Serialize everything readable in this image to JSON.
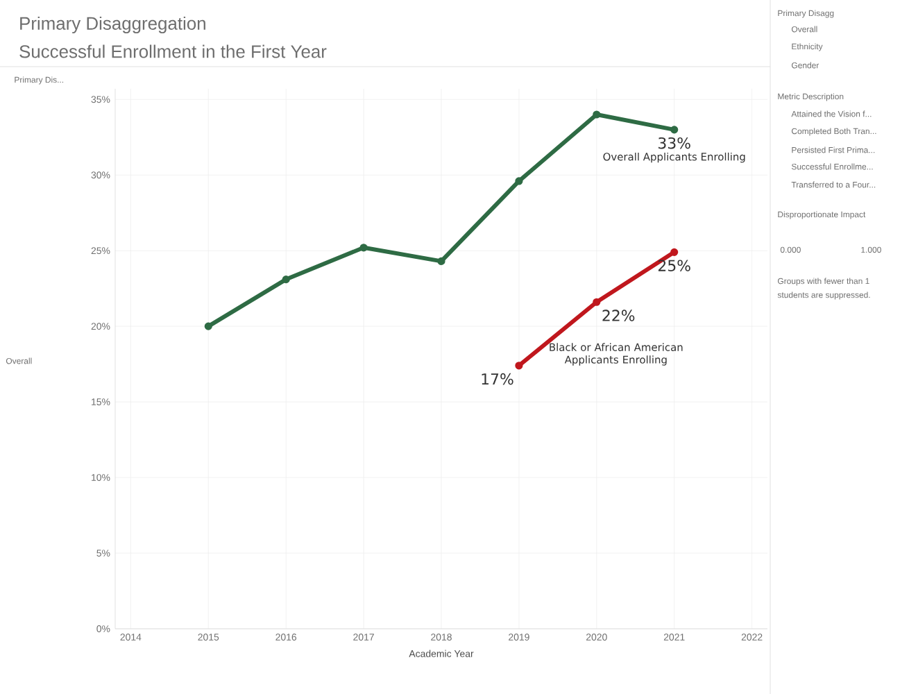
{
  "chart_data": {
    "type": "line",
    "title": "Primary Disaggregation",
    "subtitle": "Successful Enrollment in the First Year",
    "xlabel": "Academic Year",
    "xlim": [
      2013.8,
      2022.2
    ],
    "xticks": [
      2014,
      2015,
      2016,
      2017,
      2018,
      2019,
      2020,
      2021,
      2022
    ],
    "ylim": [
      0,
      35.7
    ],
    "yticks": [
      {
        "value": 0,
        "label": "0%"
      },
      {
        "value": 5,
        "label": "5%"
      },
      {
        "value": 10,
        "label": "10%"
      },
      {
        "value": 15,
        "label": "15%"
      },
      {
        "value": 20,
        "label": "20%"
      },
      {
        "value": 25,
        "label": "25%"
      },
      {
        "value": 30,
        "label": "30%"
      },
      {
        "value": 35,
        "label": "35%"
      }
    ],
    "grid": true,
    "legend": false,
    "marker": "circle",
    "line_style": "solid",
    "series": [
      {
        "name": "Overall Applicants Enrolling",
        "color": "#2e6b44",
        "x": [
          2015,
          2016,
          2017,
          2018,
          2019,
          2020,
          2021
        ],
        "values": [
          20.0,
          23.1,
          25.2,
          24.3,
          29.6,
          34.0,
          33.0
        ],
        "value_labels": [
          null,
          null,
          null,
          null,
          null,
          null,
          "33%"
        ]
      },
      {
        "name": "Black or African American Applicants Enrolling",
        "color": "#c0171d",
        "x": [
          2019,
          2020,
          2021
        ],
        "values": [
          17.4,
          21.6,
          24.9
        ],
        "value_labels": [
          "17%",
          "22%",
          "25%"
        ]
      }
    ],
    "annotations": [
      "Primary Dis...",
      "Primary Disagg",
      "Overall",
      "Ethnicity",
      "Gender",
      "Metric Description",
      "Attained the Vision f...",
      "Completed Both Tran...",
      "Persisted First Prima...",
      "Successful Enrollme...",
      "Transferred to a Four...",
      "Disproportionate Impact",
      "0.000",
      "1.000",
      "Groups with fewer than 1",
      "students are suppressed.",
      "Overall"
    ]
  }
}
